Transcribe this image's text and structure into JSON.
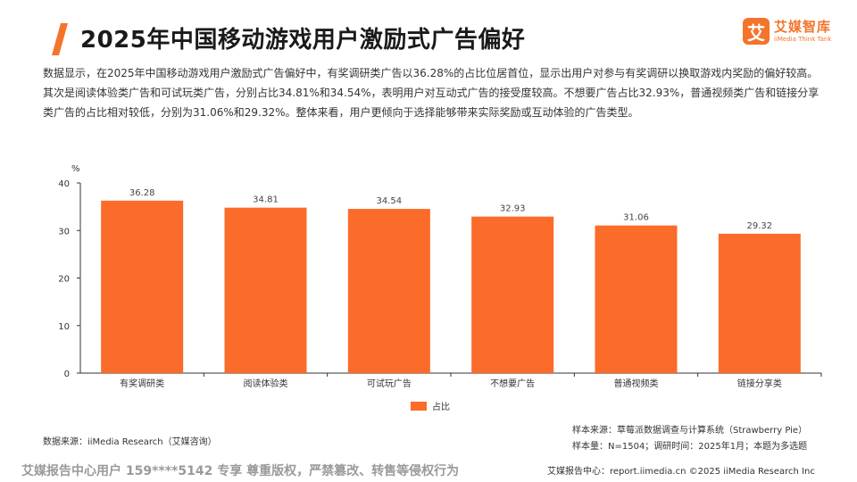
{
  "header": {
    "title": "2025年中国移动游戏用户激励式广告偏好",
    "logo_mark": "艾",
    "logo_cn": "艾媒智库",
    "logo_en": "iiMedia Think Tank"
  },
  "description": "数据显示，在2025年中国移动游戏用户激励式广告偏好中，有奖调研类广告以36.28%的占比位居首位，显示出用户对参与有奖调研以换取游戏内奖励的偏好较高。其次是阅读体验类广告和可试玩类广告，分别占比34.81%和34.54%，表明用户对互动式广告的接受度较高。不想要广告占比32.93%，普通视频类广告和链接分享类广告的占比相对较低，分别为31.06%和29.32%。整体来看，用户更倾向于选择能够带来实际奖励或互动体验的广告类型。",
  "colors": {
    "bar": "#fb6b2a",
    "accent": "#f4742b"
  },
  "chart_data": {
    "type": "bar",
    "categories": [
      "有奖调研类",
      "阅读体验类",
      "可试玩广告",
      "不想要广告",
      "普通视频类",
      "链接分享类"
    ],
    "series": [
      {
        "name": "占比",
        "values": [
          36.28,
          34.81,
          34.54,
          32.93,
          31.06,
          29.32
        ]
      }
    ],
    "value_labels": [
      "36.28",
      "34.81",
      "34.54",
      "32.93",
      "31.06",
      "29.32"
    ],
    "ylabel": "%",
    "ylim": [
      0,
      40
    ],
    "yticks": [
      0,
      10,
      20,
      30,
      40
    ],
    "legend_position": "bottom"
  },
  "sources": {
    "data_source": "数据来源：iiMedia Research（艾媒咨询）",
    "sample_source": "样本来源：草莓派数据调查与计算系统（Strawberry Pie）",
    "sample_size": "样本量：N=1504；调研时间：2025年1月；本题为多选题"
  },
  "footer": {
    "watermark": "艾媒报告中心用户 159****5142 专享 尊重版权，严禁篡改、转售等侵权行为",
    "site": "艾媒报告中心：report.iimedia.cn  ©2025 iiMedia Research Inc"
  }
}
